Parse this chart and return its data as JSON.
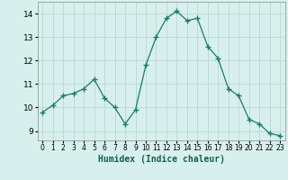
{
  "x": [
    0,
    1,
    2,
    3,
    4,
    5,
    6,
    7,
    8,
    9,
    10,
    11,
    12,
    13,
    14,
    15,
    16,
    17,
    18,
    19,
    20,
    21,
    22,
    23
  ],
  "y": [
    9.8,
    10.1,
    10.5,
    10.6,
    10.8,
    11.2,
    10.4,
    10.0,
    9.3,
    9.9,
    11.8,
    13.0,
    13.8,
    14.1,
    13.7,
    13.8,
    12.6,
    12.1,
    10.8,
    10.5,
    9.5,
    9.3,
    8.9,
    8.8
  ],
  "line_color": "#1a7a6e",
  "marker_color": "#1a7a6e",
  "bg_color": "#d8f0ed",
  "grid_color": "#b8d8d4",
  "xlabel": "Humidex (Indice chaleur)",
  "yticks": [
    9,
    10,
    11,
    12,
    13,
    14
  ],
  "xticks": [
    0,
    1,
    2,
    3,
    4,
    5,
    6,
    7,
    8,
    9,
    10,
    11,
    12,
    13,
    14,
    15,
    16,
    17,
    18,
    19,
    20,
    21,
    22,
    23
  ],
  "ylim": [
    8.6,
    14.5
  ],
  "xlim": [
    -0.5,
    23.5
  ]
}
